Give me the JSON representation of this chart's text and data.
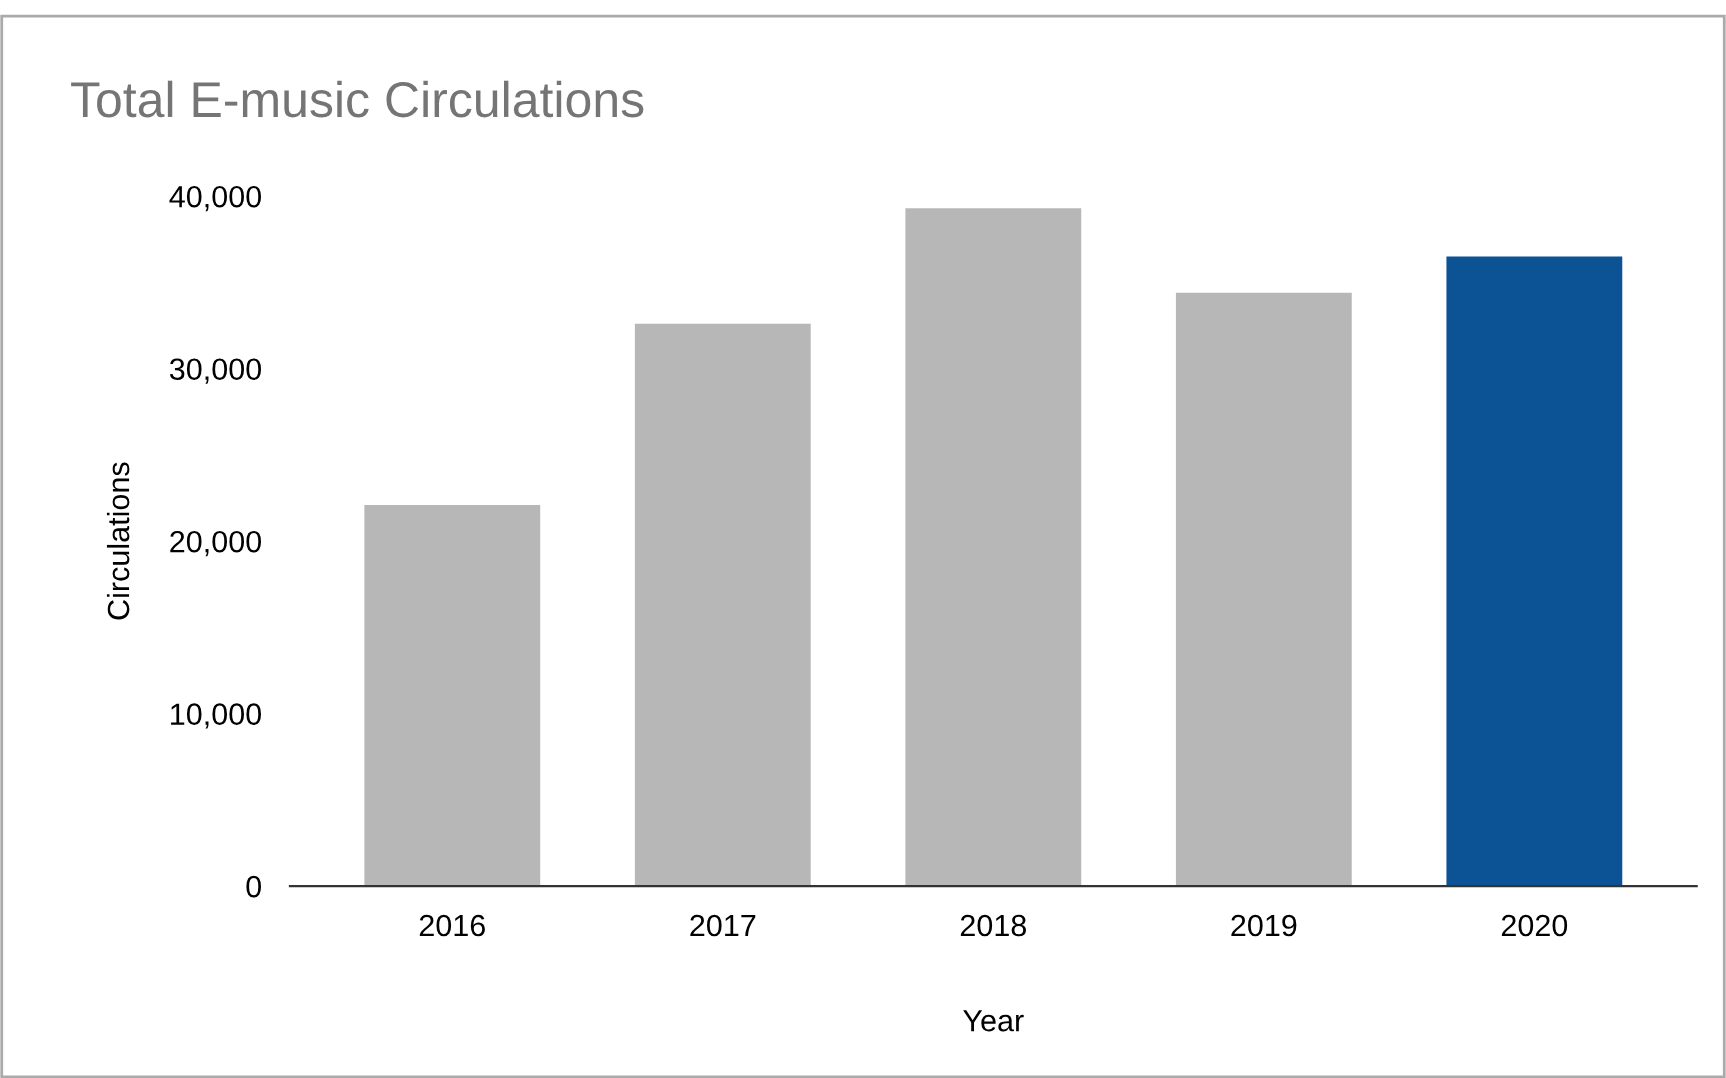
{
  "chart_data": {
    "type": "bar",
    "title": "Total E-music Circulations",
    "xlabel": "Year",
    "ylabel": "Circulations",
    "categories": [
      "2016",
      "2017",
      "2018",
      "2019",
      "2020"
    ],
    "values": [
      22100,
      32600,
      39300,
      34400,
      36500
    ],
    "colors": [
      "#b7b7b7",
      "#b7b7b7",
      "#b7b7b7",
      "#b7b7b7",
      "#0b5394"
    ],
    "ylim": [
      0,
      40000
    ],
    "yticks": [
      {
        "value": 0,
        "label": "0"
      },
      {
        "value": 10000,
        "label": "10,000"
      },
      {
        "value": 20000,
        "label": "20,000"
      },
      {
        "value": 30000,
        "label": "30,000"
      },
      {
        "value": 40000,
        "label": "40,000"
      }
    ],
    "grid": false,
    "legend": false
  }
}
